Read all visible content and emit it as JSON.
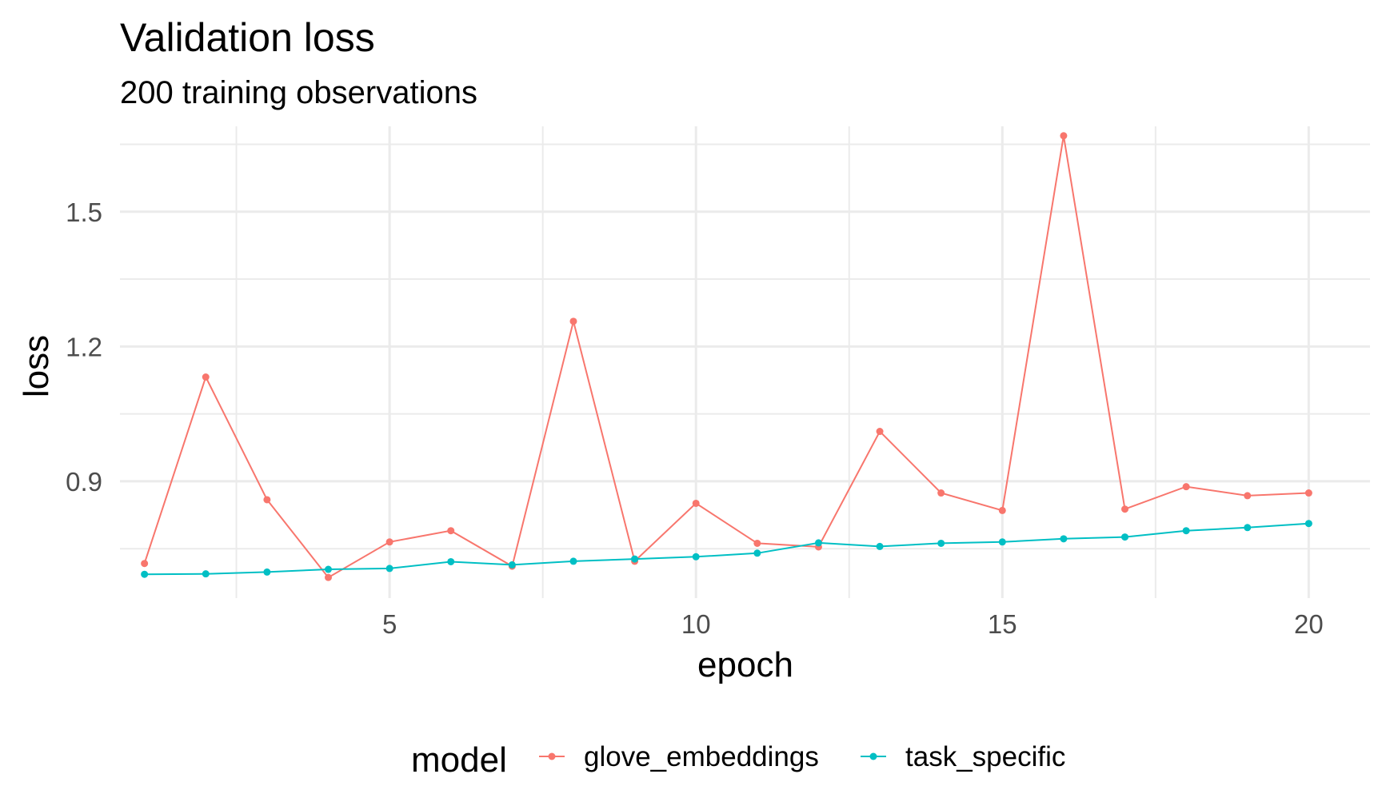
{
  "chart_data": {
    "type": "line",
    "title": "Validation loss",
    "subtitle": "200 training observations",
    "xlabel": "epoch",
    "ylabel": "loss",
    "xlim": [
      0.6,
      21.0
    ],
    "ylim": [
      0.64,
      1.69
    ],
    "x_ticks": [
      5,
      10,
      15,
      20
    ],
    "x_tick_labels": [
      "5",
      "10",
      "15",
      "20"
    ],
    "x_minor_ticks": [
      2.5,
      7.5,
      12.5,
      17.5
    ],
    "y_ticks": [
      0.9,
      1.2,
      1.5
    ],
    "y_tick_labels": [
      "0.9",
      "1.2",
      "1.5"
    ],
    "y_minor_ticks": [
      0.75,
      1.05,
      1.35,
      1.65
    ],
    "grid": true,
    "legend": {
      "position": "bottom",
      "title": "model"
    },
    "x": [
      1,
      2,
      3,
      4,
      5,
      6,
      7,
      8,
      9,
      10,
      11,
      12,
      13,
      14,
      15,
      16,
      17,
      18,
      19,
      20
    ],
    "series": [
      {
        "name": "glove_embeddings",
        "color": "#F8766D",
        "values": [
          0.717,
          1.132,
          0.859,
          0.686,
          0.765,
          0.79,
          0.711,
          1.256,
          0.722,
          0.851,
          0.762,
          0.754,
          1.011,
          0.874,
          0.835,
          1.669,
          0.838,
          0.888,
          0.868,
          0.874
        ]
      },
      {
        "name": "task_specific",
        "color": "#00BFC4",
        "values": [
          0.693,
          0.694,
          0.698,
          0.704,
          0.706,
          0.721,
          0.714,
          0.722,
          0.727,
          0.732,
          0.74,
          0.763,
          0.755,
          0.762,
          0.765,
          0.772,
          0.776,
          0.79,
          0.797,
          0.806
        ]
      }
    ]
  }
}
